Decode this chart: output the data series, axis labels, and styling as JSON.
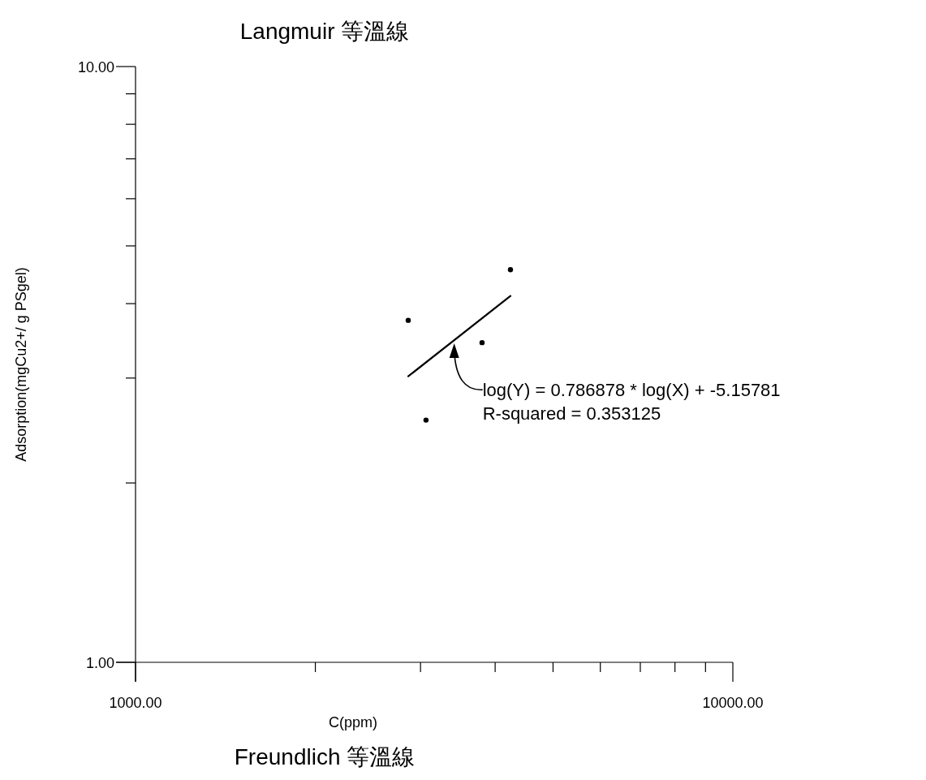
{
  "chart_data": {
    "type": "scatter",
    "title": "Langmuir 等溫線",
    "xlabel": "C(ppm)",
    "ylabel": "Adsorption(mgCu2+/ g PSgel)",
    "log": "xy",
    "xlim": [
      1000,
      10000
    ],
    "ylim": [
      1,
      10
    ],
    "xticks": [
      {
        "value": 1000,
        "label": "1000.00"
      },
      {
        "value": 2000,
        "label": null
      },
      {
        "value": 3000,
        "label": null
      },
      {
        "value": 4000,
        "label": null
      },
      {
        "value": 5000,
        "label": null
      },
      {
        "value": 6000,
        "label": null
      },
      {
        "value": 7000,
        "label": null
      },
      {
        "value": 8000,
        "label": null
      },
      {
        "value": 9000,
        "label": null
      },
      {
        "value": 10000,
        "label": "10000.00"
      }
    ],
    "yticks": [
      {
        "value": 1,
        "label": "1.00"
      },
      {
        "value": 2,
        "label": null
      },
      {
        "value": 3,
        "label": null
      },
      {
        "value": 4,
        "label": null
      },
      {
        "value": 5,
        "label": null
      },
      {
        "value": 6,
        "label": null
      },
      {
        "value": 7,
        "label": null
      },
      {
        "value": 8,
        "label": null
      },
      {
        "value": 9,
        "label": null
      },
      {
        "value": 10,
        "label": "10.00"
      }
    ],
    "series": [
      {
        "color": "#000000",
        "marker": "circle",
        "x": [
          2861,
          3064,
          3803,
          4243
        ],
        "values": [
          3.75,
          2.55,
          3.44,
          4.56
        ]
      },
      {
        "type": "line",
        "marker": "none",
        "color": "#000000",
        "x": [
          2861,
          4243
        ],
        "values": [
          3.02,
          4.12
        ]
      }
    ],
    "annotations": [
      "log(Y) = 0.786878 * log(X) + -5.15781",
      "R-squared = 0.353125",
      "Freundlich 等溫線"
    ]
  }
}
